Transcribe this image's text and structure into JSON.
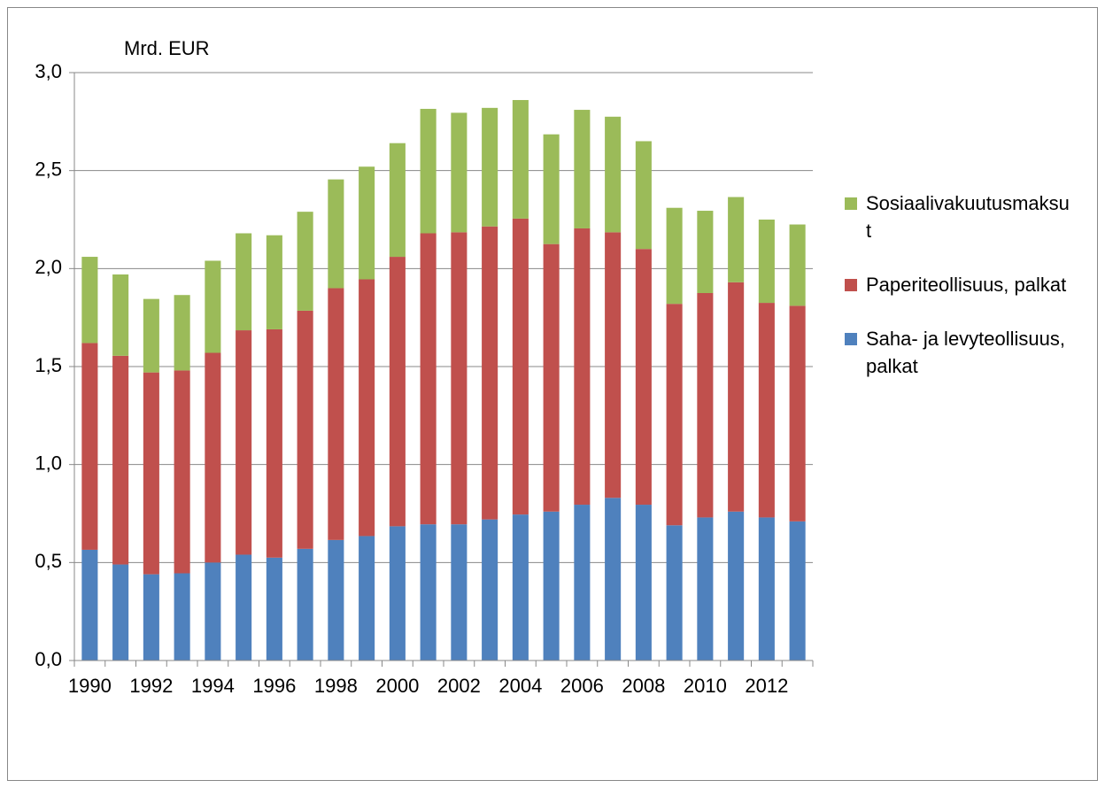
{
  "chart_data": {
    "type": "stacked-bar",
    "y_axis_label": "Mrd. EUR",
    "categories": [
      "1990",
      null,
      "1992",
      null,
      "1994",
      null,
      "1996",
      null,
      "1998",
      null,
      "2000",
      null,
      "2002",
      null,
      "2004",
      null,
      "2006",
      null,
      "2008",
      null,
      "2010",
      null,
      "2012",
      null
    ],
    "series": [
      {
        "name": "Saha- ja levyteollisuus, palkat",
        "color": "#4f81bd",
        "values": [
          0.565,
          0.49,
          0.44,
          0.445,
          0.5,
          0.54,
          0.525,
          0.57,
          0.615,
          0.635,
          0.685,
          0.695,
          0.695,
          0.72,
          0.745,
          0.76,
          0.795,
          0.83,
          0.795,
          0.69,
          0.73,
          0.76,
          0.73,
          0.71
        ]
      },
      {
        "name": "Paperiteollisuus, palkat",
        "color": "#c0504d",
        "values": [
          1.055,
          1.065,
          1.03,
          1.035,
          1.07,
          1.145,
          1.165,
          1.215,
          1.285,
          1.31,
          1.375,
          1.485,
          1.49,
          1.495,
          1.51,
          1.365,
          1.41,
          1.355,
          1.305,
          1.13,
          1.145,
          1.17,
          1.095,
          1.1
        ]
      },
      {
        "name": "Sosiaalivakuutusmaksut",
        "color": "#9bbb59",
        "values": [
          0.44,
          0.415,
          0.375,
          0.385,
          0.47,
          0.495,
          0.48,
          0.505,
          0.555,
          0.575,
          0.58,
          0.635,
          0.61,
          0.605,
          0.605,
          0.56,
          0.605,
          0.59,
          0.55,
          0.49,
          0.42,
          0.435,
          0.425,
          0.415
        ]
      }
    ],
    "ylim": [
      0,
      3
    ],
    "yticks": [
      {
        "value": 0,
        "label": "0,0"
      },
      {
        "value": 0.5,
        "label": "0,5"
      },
      {
        "value": 1,
        "label": "1,0"
      },
      {
        "value": 1.5,
        "label": "1,5"
      },
      {
        "value": 2,
        "label": "2,0"
      },
      {
        "value": 2.5,
        "label": "2,5"
      },
      {
        "value": 3,
        "label": "3,0"
      }
    ],
    "grid": true,
    "legend": "right"
  }
}
